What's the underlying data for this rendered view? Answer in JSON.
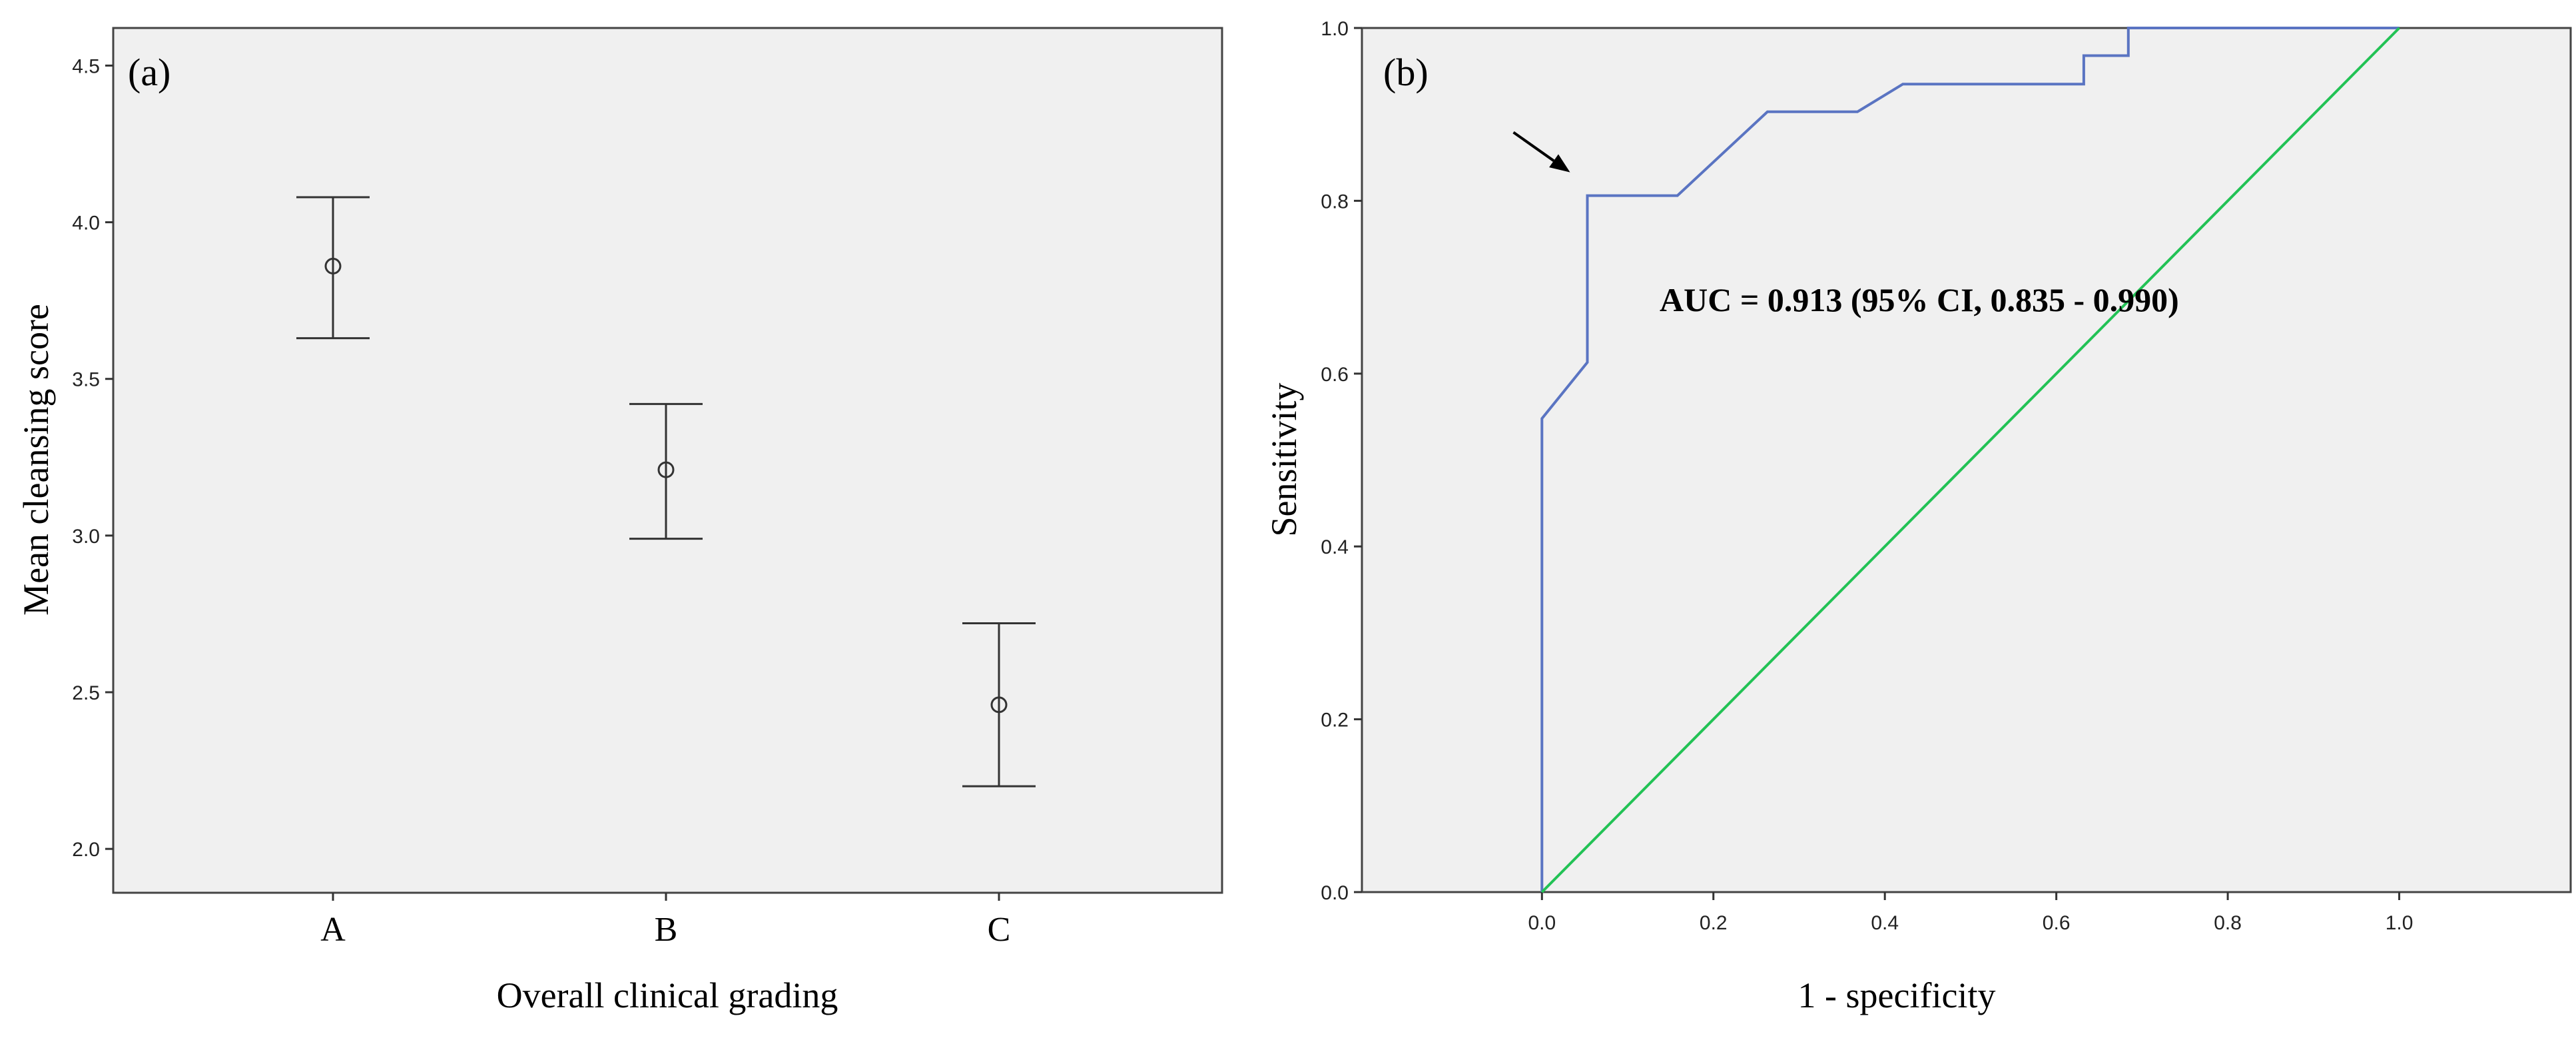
{
  "chart_data": [
    {
      "type": "errorbar",
      "panel_label": "(a)",
      "xlabel": "Overall clinical grading",
      "ylabel": "Mean cleansing score",
      "categories": [
        "A",
        "B",
        "C"
      ],
      "means": [
        3.86,
        3.21,
        2.46
      ],
      "lower": [
        3.63,
        2.99,
        2.2
      ],
      "upper": [
        4.08,
        3.42,
        2.72
      ],
      "ylim": [
        1.86,
        4.62
      ],
      "yticks": [
        2.0,
        2.5,
        3.0,
        3.5,
        4.0,
        4.5
      ],
      "ytick_labels": [
        "2.0",
        "2.5",
        "3.0",
        "3.5",
        "4.0",
        "4.5"
      ],
      "grid": false,
      "colors": {
        "plot_bg": "#f0f0f0",
        "line": "#333333"
      }
    },
    {
      "type": "line",
      "panel_label": "(b)",
      "xlabel": "1 - specificity",
      "ylabel": "Sensitivity",
      "annotation": "AUC = 0.913 (95% CI, 0.835 - 0.990)",
      "arrow_target": {
        "x": 0.053,
        "y": 0.806
      },
      "xlim": [
        -0.21,
        1.2
      ],
      "ylim": [
        0,
        1
      ],
      "xticks": [
        0.0,
        0.2,
        0.4,
        0.6,
        0.8,
        1.0
      ],
      "xtick_labels": [
        "0.0",
        "0.2",
        "0.4",
        "0.6",
        "0.8",
        "1.0"
      ],
      "yticks": [
        0.0,
        0.2,
        0.4,
        0.6,
        0.8,
        1.0
      ],
      "ytick_labels": [
        "0.0",
        "0.2",
        "0.4",
        "0.6",
        "0.8",
        "1.0"
      ],
      "grid": false,
      "series": [
        {
          "x": [
            0,
            0,
            0.053,
            0.053,
            0.158,
            0.263,
            0.368,
            0.421,
            0.632,
            0.632,
            0.684,
            0.684,
            1.0
          ],
          "y": [
            0,
            0.548,
            0.613,
            0.806,
            0.806,
            0.903,
            0.903,
            0.935,
            0.935,
            0.968,
            0.968,
            1.0,
            1.0
          ],
          "color": "#5a74c2"
        },
        {
          "x": [
            0,
            1
          ],
          "y": [
            0,
            1
          ],
          "color": "#22c255"
        }
      ],
      "colors": {
        "plot_bg": "#f0f0f0",
        "line": "#333333"
      }
    }
  ]
}
